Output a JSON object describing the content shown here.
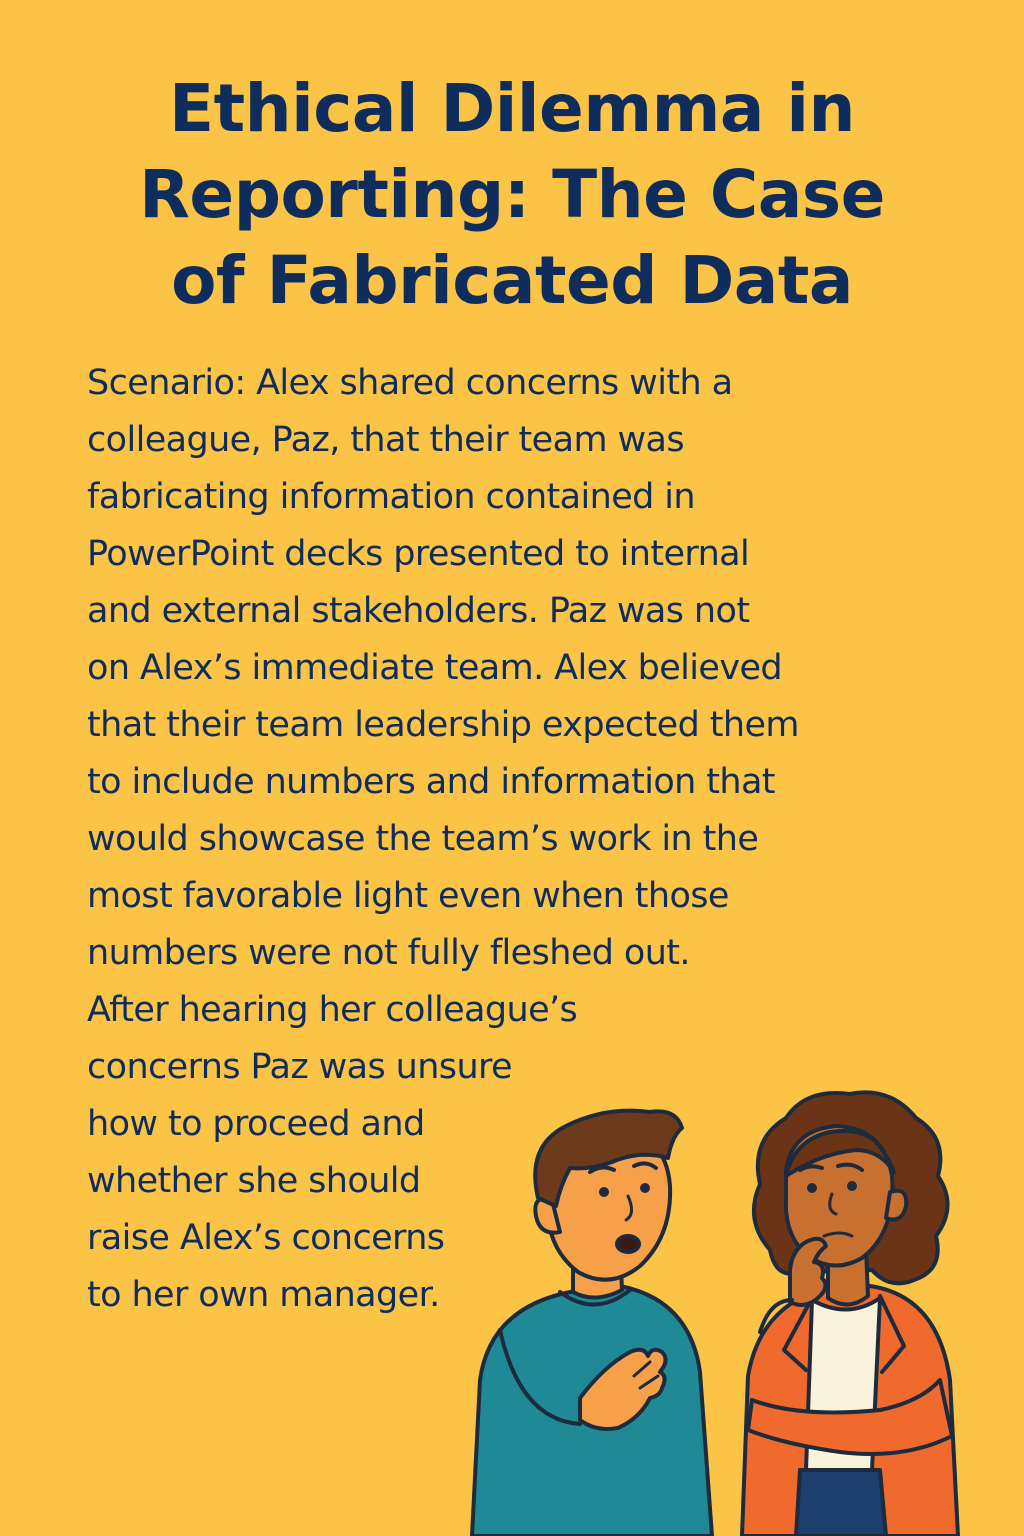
{
  "title": {
    "lines": [
      "Ethical Dilemma in",
      "Reporting: The Case",
      "of Fabricated Data"
    ]
  },
  "scenario": {
    "lines": [
      "Scenario: Alex shared concerns with a",
      "colleague, Paz, that their team was",
      "fabricating information contained in",
      "PowerPoint decks presented to internal",
      "and external stakeholders. Paz was not",
      "on Alex’s immediate team. Alex believed",
      "that their team leadership expected them",
      "to include numbers and information that",
      "would showcase the team’s work in the",
      "most favorable light even when those",
      "numbers were not fully fleshed out.",
      "After hearing her colleague’s",
      "concerns Paz was unsure",
      "how to proceed and",
      "whether she should",
      "raise Alex’s concerns",
      "to her own manager."
    ]
  },
  "colors": {
    "background": "#fcc447",
    "text": "#0f2d5c",
    "man_shirt": "#1f8a96",
    "woman_jacket": "#ef6a2c",
    "skin_man": "#f6a14a",
    "skin_woman": "#c8702f",
    "outline": "#1c2b3d"
  },
  "illustration": {
    "figures": [
      "man-worried",
      "woman-thinking"
    ]
  }
}
